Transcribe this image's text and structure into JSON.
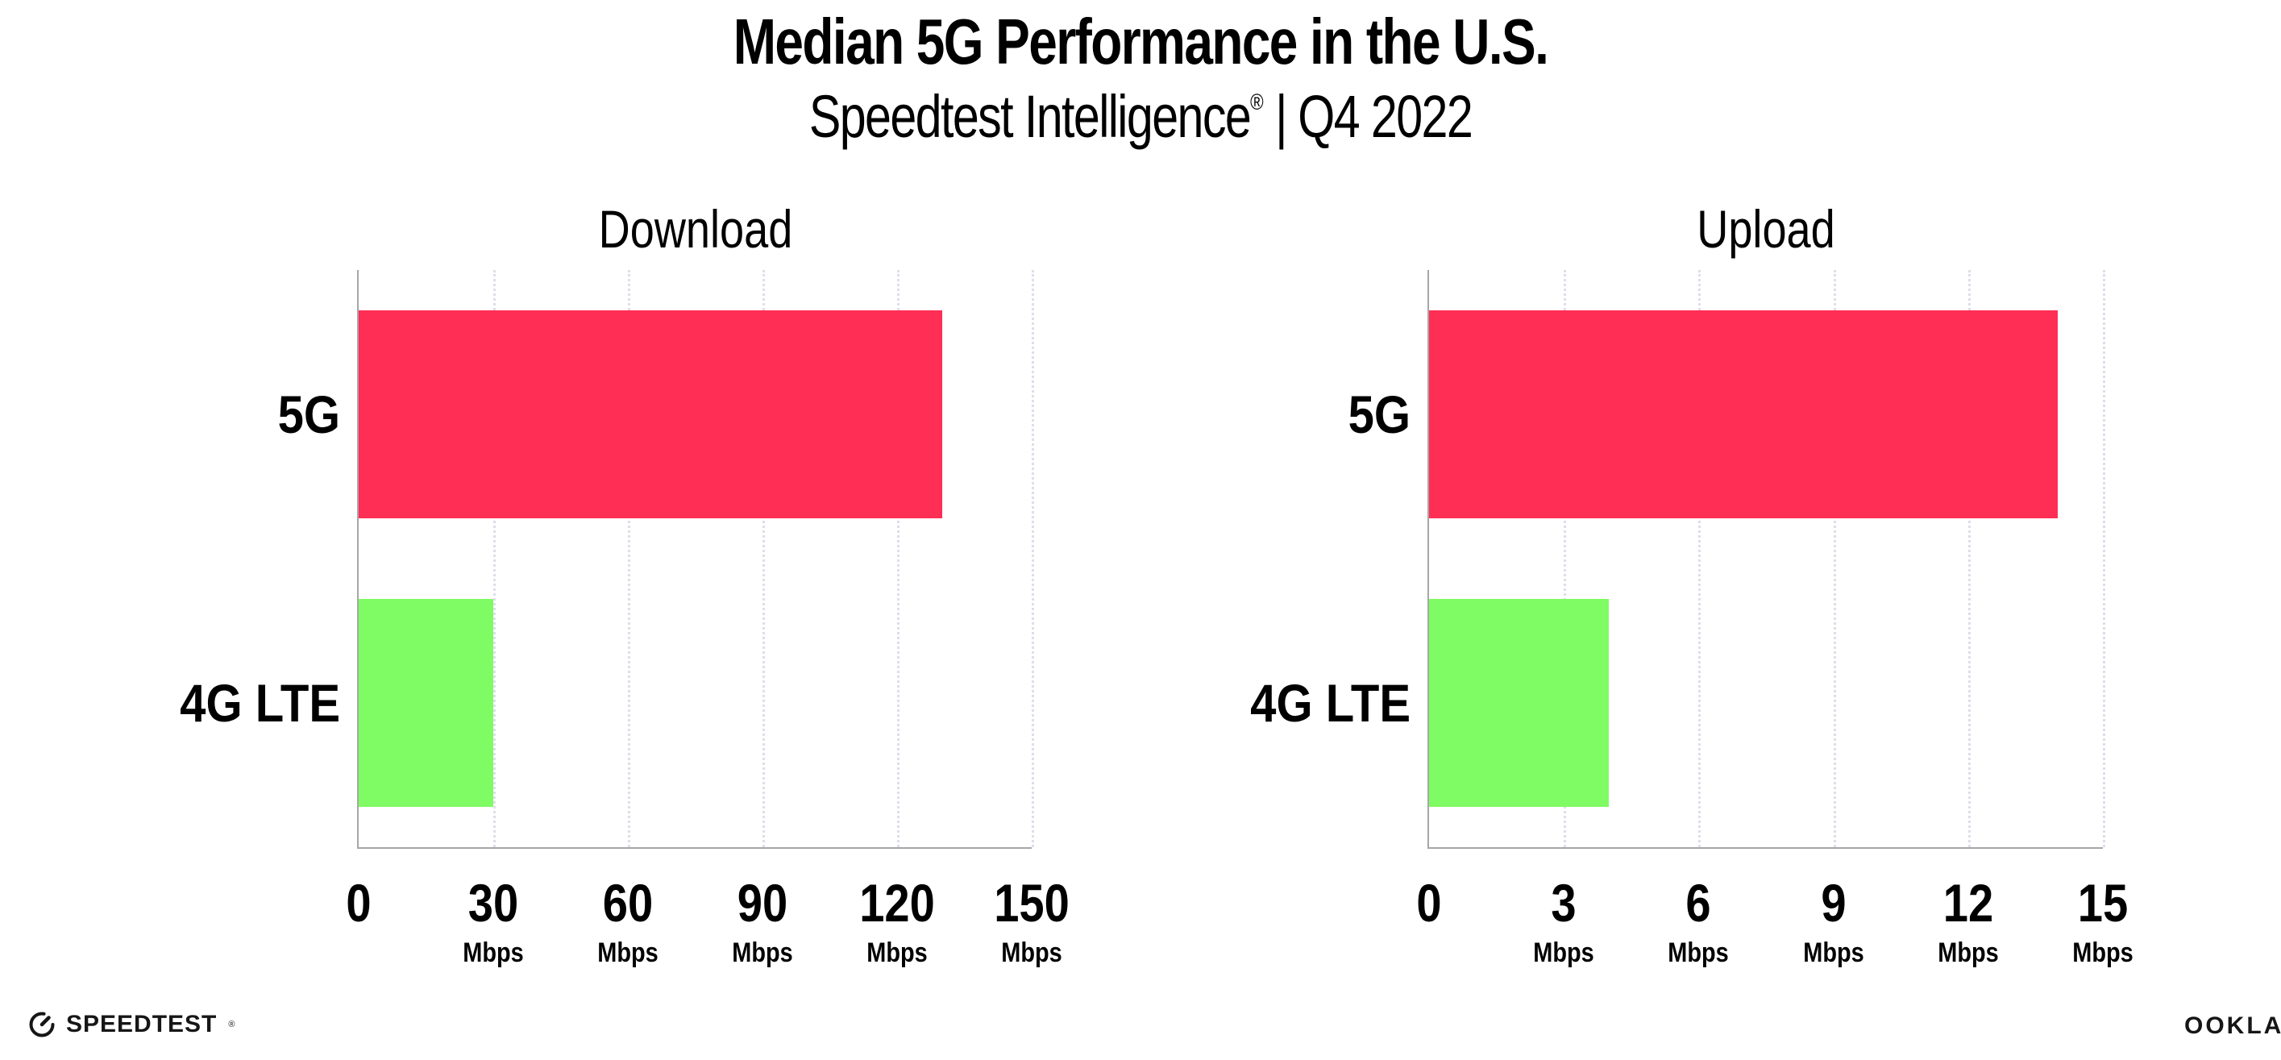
{
  "page": {
    "title": "Median 5G Performance in the U.S.",
    "subtitle_brand": "Speedtest Intelligence",
    "subtitle_reg": "®",
    "subtitle_sep": "|",
    "subtitle_period": "Q4 2022"
  },
  "colors": {
    "bar_5g": "#FF2E55",
    "bar_4g_lte": "#7FFB63",
    "axis": "#A6A6A6",
    "gridline": "#DCDFE9",
    "text": "#000000"
  },
  "chart_data": [
    {
      "type": "bar",
      "orientation": "horizontal",
      "title": "Download",
      "categories": [
        "5G",
        "4G LTE"
      ],
      "values": [
        130,
        30
      ],
      "unit": "Mbps",
      "xlim": [
        0,
        150
      ],
      "xticks": [
        0,
        30,
        60,
        90,
        120,
        150
      ],
      "grid": "vertical-dotted",
      "bar_colors": [
        "#FF2E55",
        "#7FFB63"
      ],
      "legend": "none"
    },
    {
      "type": "bar",
      "orientation": "horizontal",
      "title": "Upload",
      "categories": [
        "5G",
        "4G LTE"
      ],
      "values": [
        14,
        4
      ],
      "unit": "Mbps",
      "xlim": [
        0,
        15
      ],
      "xticks": [
        0,
        3,
        6,
        9,
        12,
        15
      ],
      "grid": "vertical-dotted",
      "bar_colors": [
        "#FF2E55",
        "#7FFB63"
      ],
      "legend": "none"
    }
  ],
  "footer": {
    "speedtest_label": "SPEEDTEST",
    "speedtest_mark": "®",
    "speedtest_icon": "gauge-icon",
    "ookla_label": "OOKLA",
    "ookla_mark": "®"
  }
}
